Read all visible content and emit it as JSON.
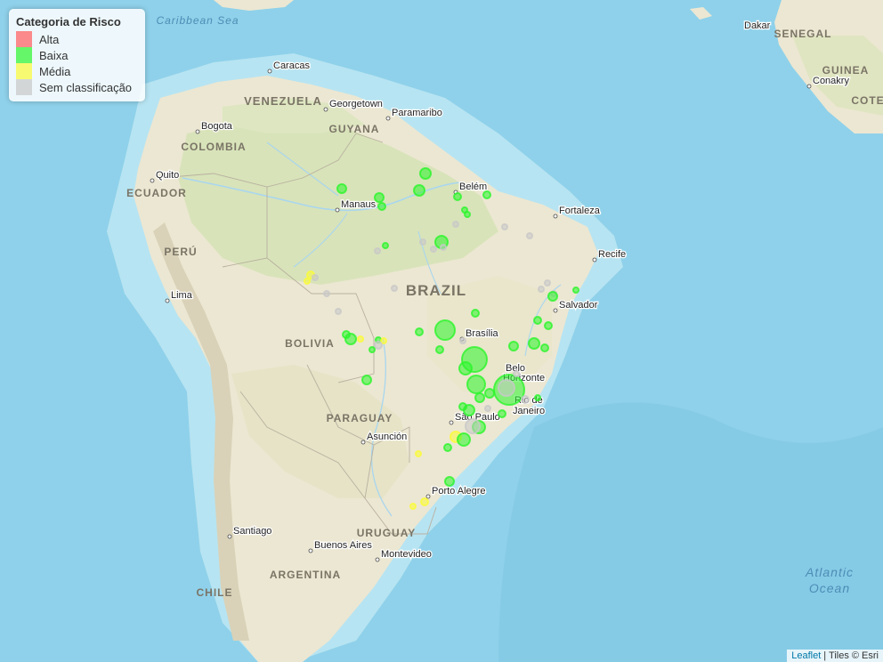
{
  "legend": {
    "title": "Categoria de Risco",
    "items": [
      {
        "label": "Alta",
        "color": "#ff5b5b"
      },
      {
        "label": "Baixa",
        "color": "#2bf52b"
      },
      {
        "label": "Média",
        "color": "#fbfb35"
      },
      {
        "label": "Sem classificação",
        "color": "#c8c8c8"
      }
    ]
  },
  "attribution": {
    "link": "Leaflet",
    "text": " | Tiles © Esri"
  },
  "map_labels": {
    "cities": [
      {
        "name": "Dakar"
      },
      {
        "name": "Conakry"
      },
      {
        "name": "Caracas"
      },
      {
        "name": "Georgetown"
      },
      {
        "name": "Paramaribo"
      },
      {
        "name": "Bogota"
      },
      {
        "name": "Quito"
      },
      {
        "name": "Manaus"
      },
      {
        "name": "Belém"
      },
      {
        "name": "Fortaleza"
      },
      {
        "name": "Recife"
      },
      {
        "name": "Lima"
      },
      {
        "name": "Salvador"
      },
      {
        "name": "Brasília"
      },
      {
        "name": "Belo"
      },
      {
        "name": "Horizonte"
      },
      {
        "name": "Rio de"
      },
      {
        "name": "Janeiro"
      },
      {
        "name": "São Paulo"
      },
      {
        "name": "Asunción"
      },
      {
        "name": "Porto Alegre"
      },
      {
        "name": "Santiago"
      },
      {
        "name": "Buenos Aires"
      },
      {
        "name": "Montevideo"
      }
    ],
    "countries": [
      {
        "name": "VENEZUELA"
      },
      {
        "name": "GUYANA"
      },
      {
        "name": "COLOMBIA"
      },
      {
        "name": "ECUADOR"
      },
      {
        "name": "PERÚ"
      },
      {
        "name": "BRAZIL"
      },
      {
        "name": "BOLIVIA"
      },
      {
        "name": "PARAGUAY"
      },
      {
        "name": "URUGUAY"
      },
      {
        "name": "ARGENTINA"
      },
      {
        "name": "CHILE"
      },
      {
        "name": "SENEGAL"
      },
      {
        "name": "GUINEA"
      },
      {
        "name": "COTE"
      }
    ],
    "water": [
      {
        "name": "Caribbean Sea"
      },
      {
        "name": "Atlantic"
      },
      {
        "name": "Ocean"
      }
    ]
  }
}
